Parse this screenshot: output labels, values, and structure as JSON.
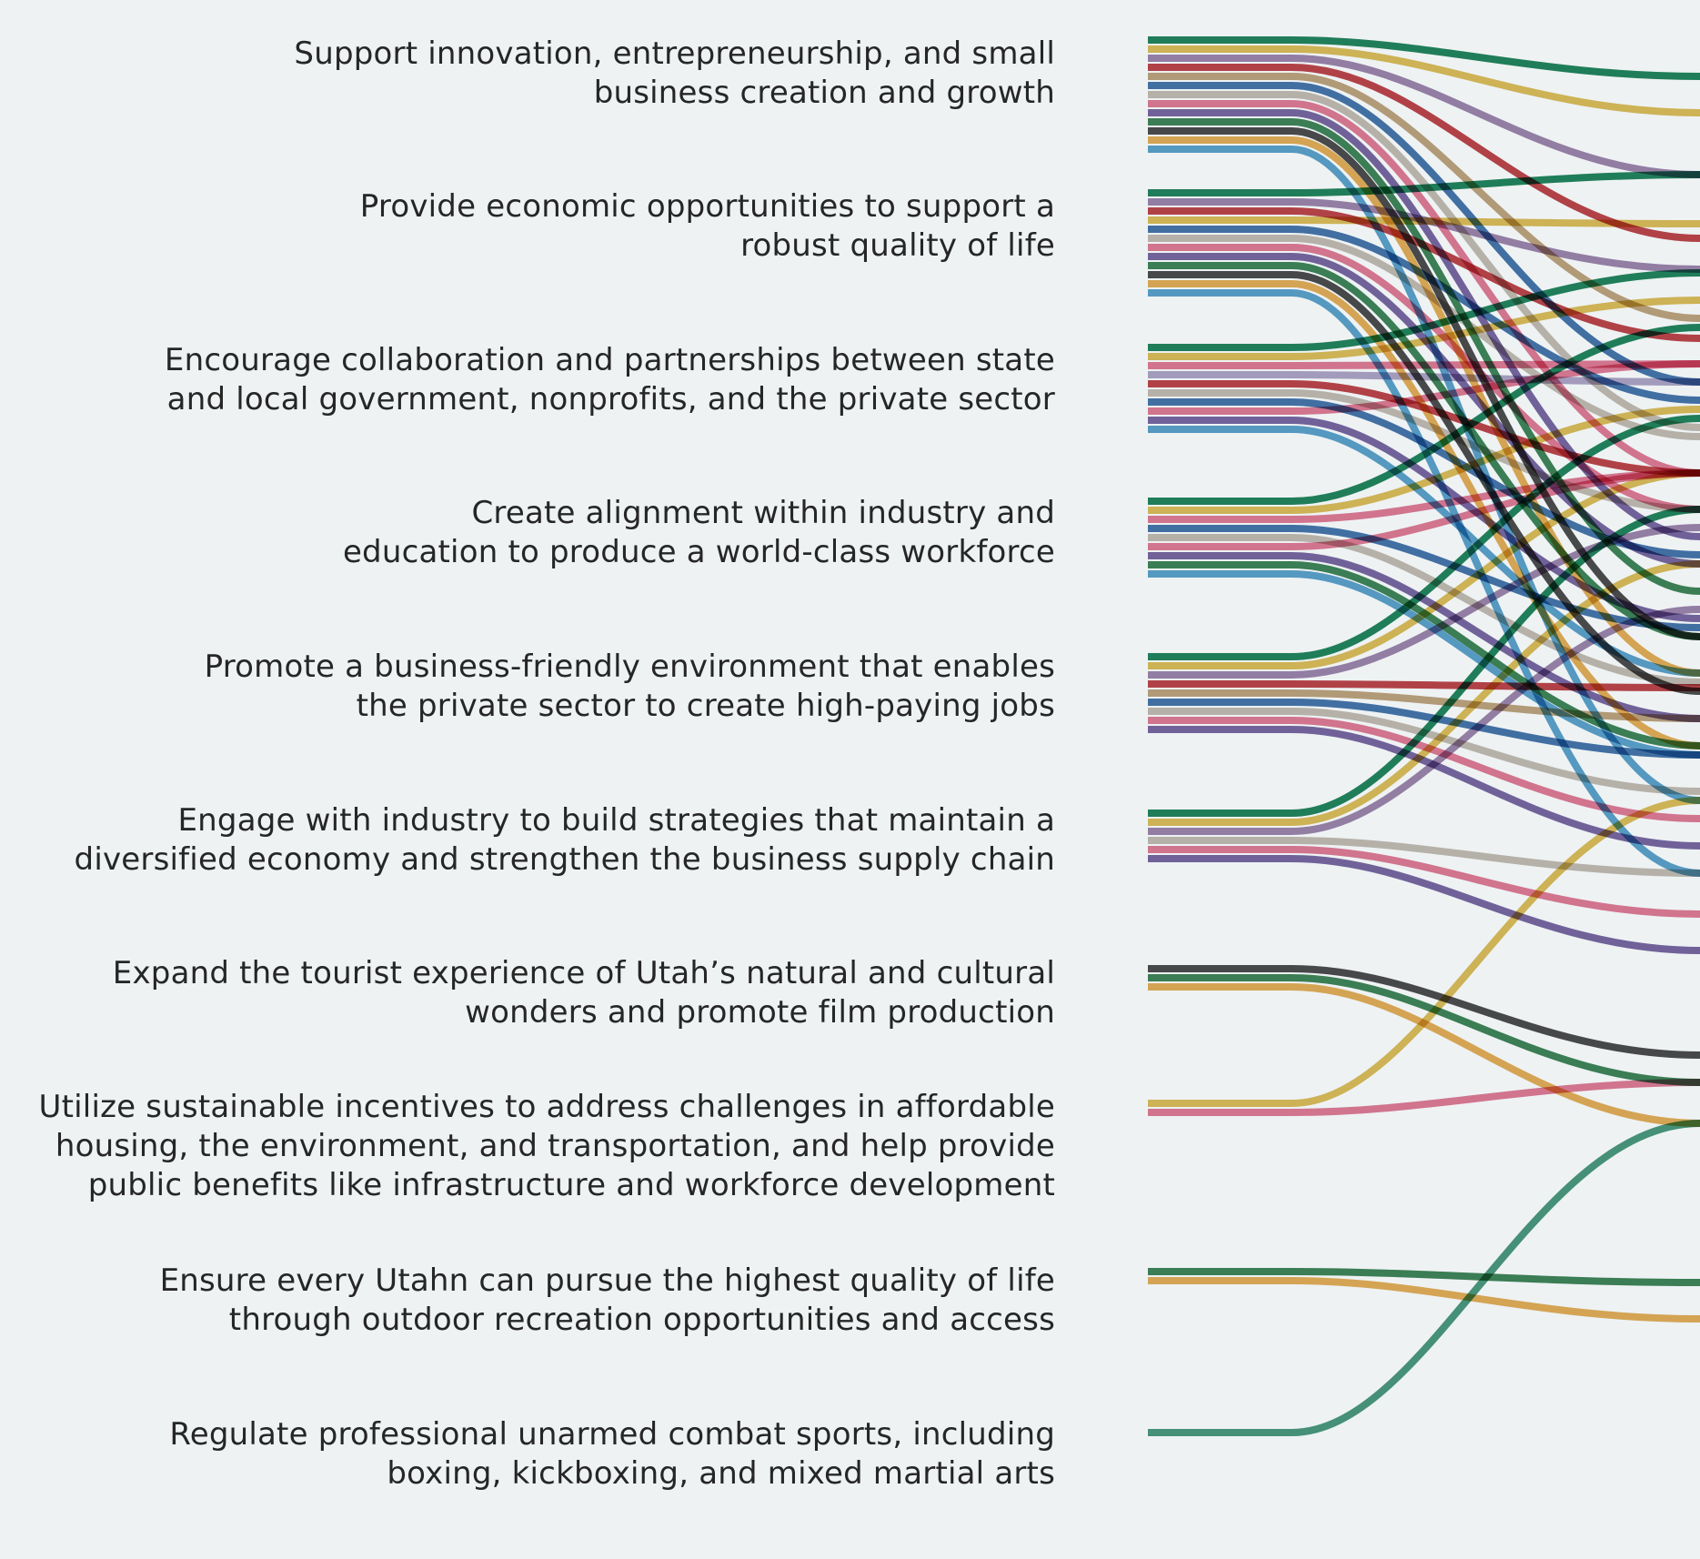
{
  "goals": [
    {
      "lines": [
        "Support innovation, entrepreneurship, and small",
        "business creation and growth"
      ]
    },
    {
      "lines": [
        "Provide economic opportunities to support a",
        "robust quality of life"
      ]
    },
    {
      "lines": [
        "Encourage collaboration and partnerships between state",
        "and local government, nonprofits, and the private sector"
      ]
    },
    {
      "lines": [
        "Create alignment within industry and",
        "education to produce a world-class workforce"
      ]
    },
    {
      "lines": [
        "Promote a business-friendly environment that enables",
        "the private sector to create high-paying jobs"
      ]
    },
    {
      "lines": [
        "Engage with industry to build strategies that maintain a",
        "diversified economy and strengthen the business supply chain"
      ]
    },
    {
      "lines": [
        "Expand the tourist experience of Utah’s natural and cultural",
        "wonders and promote film production"
      ]
    },
    {
      "lines": [
        "Utilize sustainable incentives to address challenges in affordable",
        "housing, the environment, and transportation, and help provide",
        "public benefits like infrastructure and workforce development"
      ]
    },
    {
      "lines": [
        "Ensure every Utahn can pursue the highest quality of life",
        "through outdoor recreation opportunities and access"
      ]
    },
    {
      "lines": [
        "Regulate professional unarmed combat sports, including",
        "boxing, kickboxing, and mixed martial arts"
      ]
    }
  ],
  "colors": {
    "green": "#0f7a4f",
    "yellow": "#d9b64c",
    "purple": "#957aa4",
    "red": "#b8353a",
    "tan": "#b99a72",
    "blue": "#3569a3",
    "silver": "#bdb5aa",
    "pink": "#de6f8c",
    "violet": "#6c5a99",
    "forest": "#2e7a4a",
    "black": "#3d3d3d",
    "orange": "#e1a64a",
    "sky": "#4d98c6",
    "lilac": "#a79bc0",
    "teal": "#3a8f72"
  },
  "ribbons": [
    {
      "goal": 0,
      "color": "green",
      "target": 0
    },
    {
      "goal": 0,
      "color": "yellow",
      "target": 1
    },
    {
      "goal": 0,
      "color": "purple",
      "target": 2
    },
    {
      "goal": 0,
      "color": "red",
      "target": 3
    },
    {
      "goal": 0,
      "color": "tan",
      "target": 4
    },
    {
      "goal": 0,
      "color": "blue",
      "target": 5
    },
    {
      "goal": 0,
      "color": "silver",
      "target": 6
    },
    {
      "goal": 0,
      "color": "pink",
      "target": 7
    },
    {
      "goal": 0,
      "color": "violet",
      "target": 8
    },
    {
      "goal": 0,
      "color": "forest",
      "target": 9
    },
    {
      "goal": 0,
      "color": "black",
      "target": 10
    },
    {
      "goal": 0,
      "color": "orange",
      "target": 11
    },
    {
      "goal": 0,
      "color": "sky",
      "target": 12
    },
    {
      "goal": 1,
      "color": "green",
      "target": 0
    },
    {
      "goal": 1,
      "color": "purple",
      "target": 2
    },
    {
      "goal": 1,
      "color": "red",
      "target": 3
    },
    {
      "goal": 1,
      "color": "yellow",
      "target": 1
    },
    {
      "goal": 1,
      "color": "blue",
      "target": 5
    },
    {
      "goal": 1,
      "color": "silver",
      "target": 6
    },
    {
      "goal": 1,
      "color": "pink",
      "target": 7
    },
    {
      "goal": 1,
      "color": "violet",
      "target": 8
    },
    {
      "goal": 1,
      "color": "forest",
      "target": 9
    },
    {
      "goal": 1,
      "color": "black",
      "target": 10
    },
    {
      "goal": 1,
      "color": "orange",
      "target": 11
    },
    {
      "goal": 1,
      "color": "sky",
      "target": 12
    },
    {
      "goal": 2,
      "color": "green",
      "target": 0
    },
    {
      "goal": 2,
      "color": "yellow",
      "target": 1
    },
    {
      "goal": 2,
      "color": "pink",
      "target": 7
    },
    {
      "goal": 2,
      "color": "lilac",
      "target": 2
    },
    {
      "goal": 2,
      "color": "red",
      "target": 3
    },
    {
      "goal": 2,
      "color": "silver",
      "target": 6
    },
    {
      "goal": 2,
      "color": "blue",
      "target": 5
    },
    {
      "goal": 2,
      "color": "pink",
      "target": 7
    },
    {
      "goal": 2,
      "color": "violet",
      "target": 8
    },
    {
      "goal": 2,
      "color": "sky",
      "target": 12
    },
    {
      "goal": 3,
      "color": "green",
      "target": 0
    },
    {
      "goal": 3,
      "color": "yellow",
      "target": 1
    },
    {
      "goal": 3,
      "color": "pink",
      "target": 7
    },
    {
      "goal": 3,
      "color": "blue",
      "target": 5
    },
    {
      "goal": 3,
      "color": "silver",
      "target": 6
    },
    {
      "goal": 3,
      "color": "pink",
      "target": 7
    },
    {
      "goal": 3,
      "color": "violet",
      "target": 8
    },
    {
      "goal": 3,
      "color": "forest",
      "target": 9
    },
    {
      "goal": 3,
      "color": "sky",
      "target": 12
    },
    {
      "goal": 4,
      "color": "green",
      "target": 0
    },
    {
      "goal": 4,
      "color": "yellow",
      "target": 1
    },
    {
      "goal": 4,
      "color": "purple",
      "target": 2
    },
    {
      "goal": 4,
      "color": "red",
      "target": 3
    },
    {
      "goal": 4,
      "color": "tan",
      "target": 4
    },
    {
      "goal": 4,
      "color": "blue",
      "target": 5
    },
    {
      "goal": 4,
      "color": "silver",
      "target": 6
    },
    {
      "goal": 4,
      "color": "pink",
      "target": 7
    },
    {
      "goal": 4,
      "color": "violet",
      "target": 8
    },
    {
      "goal": 5,
      "color": "green",
      "target": 0
    },
    {
      "goal": 5,
      "color": "yellow",
      "target": 1
    },
    {
      "goal": 5,
      "color": "purple",
      "target": 2
    },
    {
      "goal": 5,
      "color": "silver",
      "target": 6
    },
    {
      "goal": 5,
      "color": "pink",
      "target": 7
    },
    {
      "goal": 5,
      "color": "violet",
      "target": 8
    },
    {
      "goal": 6,
      "color": "black",
      "target": 10
    },
    {
      "goal": 6,
      "color": "forest",
      "target": 9
    },
    {
      "goal": 6,
      "color": "orange",
      "target": 11
    },
    {
      "goal": 7,
      "color": "yellow",
      "target": 1
    },
    {
      "goal": 7,
      "color": "pink",
      "target": 7
    },
    {
      "goal": 8,
      "color": "forest",
      "target": 9
    },
    {
      "goal": 8,
      "color": "orange",
      "target": 11
    },
    {
      "goal": 9,
      "color": "teal",
      "target": 13
    }
  ]
}
